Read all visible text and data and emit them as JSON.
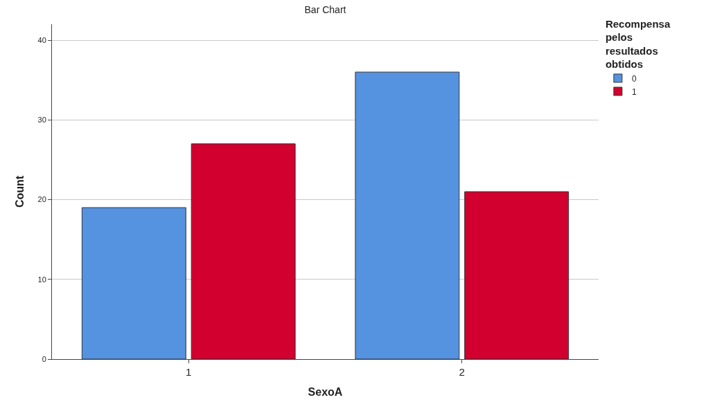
{
  "chart_data": {
    "type": "bar",
    "title": "Bar Chart",
    "xlabel": "SexoA",
    "ylabel": "Count",
    "legend_title": "Recompensa pelos resultados obtidos",
    "categories": [
      "1",
      "2"
    ],
    "series": [
      {
        "name": "0",
        "color": "#5592e0",
        "values": [
          19,
          36
        ]
      },
      {
        "name": "1",
        "color": "#d2002e",
        "values": [
          27,
          21
        ]
      }
    ],
    "ylim": [
      0,
      42
    ],
    "yticks": [
      0,
      10,
      20,
      30,
      40
    ],
    "grid": "y",
    "legend": "top right"
  }
}
